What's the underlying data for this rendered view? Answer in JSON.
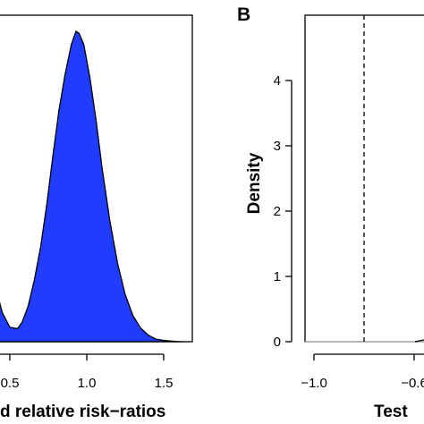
{
  "chart_data": [
    {
      "type": "area",
      "panel": "A",
      "xlabel": "...d relative risk−ratios",
      "ylabel": "",
      "xlim": [
        0.3,
        1.75
      ],
      "ylim": [
        0,
        4.7
      ],
      "x_ticks": [
        0.5,
        1.0,
        1.5
      ],
      "x_tick_labels": [
        "0.5",
        "1.0",
        "1.5"
      ],
      "color": "#1f3cff",
      "x": [
        0.3,
        0.33,
        0.36,
        0.4,
        0.45,
        0.5,
        0.55,
        0.58,
        0.62,
        0.66,
        0.7,
        0.74,
        0.78,
        0.82,
        0.86,
        0.9,
        0.93,
        0.95,
        0.98,
        1.02,
        1.06,
        1.1,
        1.15,
        1.2,
        1.25,
        1.3,
        1.35,
        1.4,
        1.45,
        1.5,
        1.55,
        1.6,
        1.63
      ],
      "y": [
        2.2,
        1.8,
        1.4,
        0.9,
        0.45,
        0.22,
        0.2,
        0.3,
        0.55,
        0.95,
        1.45,
        2.1,
        2.85,
        3.55,
        4.1,
        4.55,
        4.75,
        4.72,
        4.55,
        4.05,
        3.4,
        2.65,
        1.85,
        1.2,
        0.72,
        0.4,
        0.21,
        0.1,
        0.04,
        0.02,
        0.01,
        0.0,
        0.0
      ]
    },
    {
      "type": "line",
      "panel": "B",
      "xlabel": "Test",
      "ylabel": "Density",
      "xlim": [
        -1.1,
        -0.55
      ],
      "ylim": [
        0,
        4.8
      ],
      "x_ticks": [
        -1.0,
        -0.6
      ],
      "x_tick_labels": [
        "−1.0",
        "−0.6"
      ],
      "y_ticks": [
        0,
        1,
        2,
        3,
        4
      ],
      "y_tick_labels": [
        "0",
        "1",
        "2",
        "3",
        "4"
      ],
      "reference_line_x": -0.8,
      "baseline_y": 0
    }
  ],
  "panel_a": {
    "xlabel": "d relative risk−ratios",
    "ticks": [
      "0.5",
      "1.0",
      "1.5"
    ]
  },
  "panel_b": {
    "letter": "B",
    "ylabel": "Density",
    "xlabel": "Test",
    "y_ticks": [
      "0",
      "1",
      "2",
      "3",
      "4"
    ],
    "x_ticks": [
      "−1.0",
      "−0.6"
    ]
  }
}
